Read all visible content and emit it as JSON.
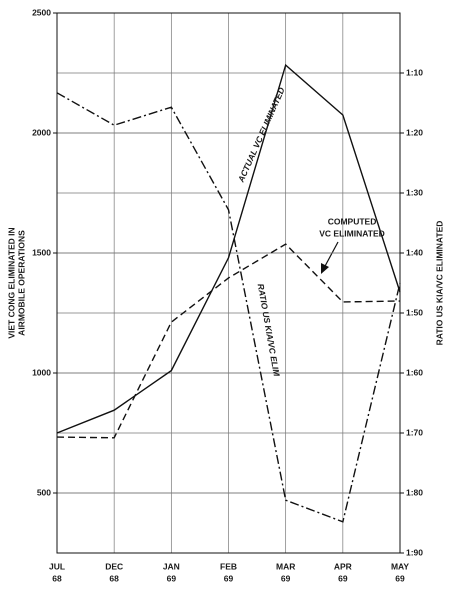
{
  "chart_data": {
    "type": "line",
    "categories": [
      "JUL",
      "DEC",
      "JAN",
      "FEB",
      "MAR",
      "APR",
      "MAY"
    ],
    "category_years": [
      "68",
      "68",
      "69",
      "69",
      "69",
      "69",
      "69"
    ],
    "ylabel": [
      "VIET CONG ELIMINATED IN",
      "AIRMOBILE OPERATIONS"
    ],
    "y2label": "RATIO US KIA/VC ELIMINATED",
    "ylim": [
      250,
      2500
    ],
    "yticks": [
      500,
      1000,
      1500,
      2000,
      2500
    ],
    "y2lim": [
      90,
      0
    ],
    "y2ticks": [
      {
        "value": 10,
        "label": "1:10"
      },
      {
        "value": 20,
        "label": "1:20"
      },
      {
        "value": 30,
        "label": "1:30"
      },
      {
        "value": 40,
        "label": "1:40"
      },
      {
        "value": 50,
        "label": "1:50"
      },
      {
        "value": 60,
        "label": "1:60"
      },
      {
        "value": 70,
        "label": "1:70"
      },
      {
        "value": 80,
        "label": "1:80"
      },
      {
        "value": 90,
        "label": "1:90"
      }
    ],
    "grid": true,
    "series": [
      {
        "label": [
          "ACTUAL VC ELIMINATED"
        ],
        "color": "#111111",
        "style": "solid",
        "values": [
          750,
          845,
          1010,
          1480,
          2283,
          2075,
          1337
        ]
      },
      {
        "label": [
          "COMPUTED",
          "VC ELIMINATED"
        ],
        "color": "#111111",
        "style": "dashed",
        "values": [
          733,
          730,
          1212,
          1396,
          1537,
          1296,
          1300
        ]
      },
      {
        "label": [
          "RATIO US KIA/VC ELIM"
        ],
        "color": "#111111",
        "style": "dashdot",
        "axis": "y2",
        "values": [
          13.3,
          18.7,
          15.7,
          32.8,
          81.2,
          84.8,
          45
        ]
      }
    ]
  }
}
